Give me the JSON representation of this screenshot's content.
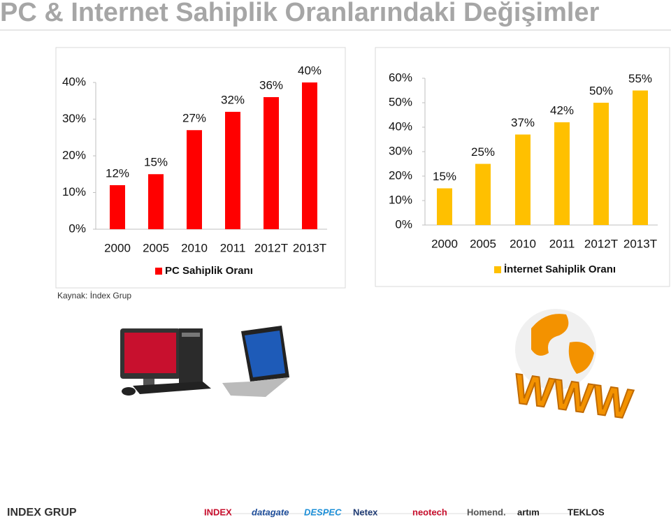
{
  "header": {
    "title": "PC & Internet Sahiplik Oranlarındaki Değişimler"
  },
  "chart_data": [
    {
      "type": "bar",
      "categories": [
        "2000",
        "2005",
        "2010",
        "2011",
        "2012T",
        "2013T"
      ],
      "series": [
        {
          "name": "PC Sahiplik Oranı",
          "color": "#ff0000",
          "values": [
            12,
            15,
            27,
            32,
            36,
            40
          ],
          "value_labels": [
            "12%",
            "15%",
            "27%",
            "32%",
            "36%",
            "40%"
          ]
        }
      ],
      "ylim": [
        0,
        40
      ],
      "yticks": [
        {
          "value": 0,
          "label": "0%"
        },
        {
          "value": 10,
          "label": "10%"
        },
        {
          "value": 20,
          "label": "20%"
        },
        {
          "value": 30,
          "label": "30%"
        },
        {
          "value": 40,
          "label": "40%"
        }
      ],
      "legend": "bottom"
    },
    {
      "type": "bar",
      "categories": [
        "2000",
        "2005",
        "2010",
        "2011",
        "2012T",
        "2013T"
      ],
      "series": [
        {
          "name": "İnternet Sahiplik Oranı",
          "color": "#ffc000",
          "values": [
            15,
            25,
            37,
            42,
            50,
            55
          ],
          "value_labels": [
            "15%",
            "25%",
            "37%",
            "42%",
            "50%",
            "55%"
          ]
        }
      ],
      "ylim": [
        0,
        60
      ],
      "yticks": [
        {
          "value": 0,
          "label": "0%"
        },
        {
          "value": 10,
          "label": "10%"
        },
        {
          "value": 20,
          "label": "20%"
        },
        {
          "value": 30,
          "label": "30%"
        },
        {
          "value": 40,
          "label": "40%"
        },
        {
          "value": 50,
          "label": "50%"
        },
        {
          "value": 60,
          "label": "60%"
        }
      ],
      "legend": "bottom"
    }
  ],
  "source": "Kaynak: İndex Grup",
  "images": {
    "www": "WWW"
  },
  "logos": [
    "INDEX GRUP",
    "INDEX",
    "datagate",
    "DESPEC",
    "Netex",
    "neotech",
    "Homend.",
    "artım",
    "TEKLOS"
  ]
}
